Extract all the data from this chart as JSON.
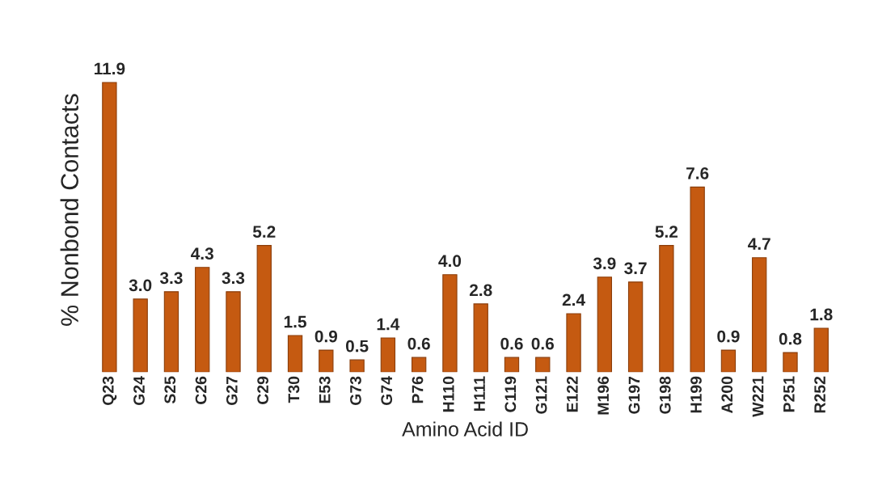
{
  "chart_data": {
    "type": "bar",
    "xlabel": "Amino Acid ID",
    "ylabel": "% Nonbond Contacts",
    "categories": [
      "Q23",
      "G24",
      "S25",
      "C26",
      "G27",
      "C29",
      "T30",
      "E53",
      "G73",
      "G74",
      "P76",
      "H110",
      "H111",
      "C119",
      "G121",
      "E122",
      "M196",
      "G197",
      "G198",
      "H199",
      "A200",
      "W221",
      "P251",
      "R252"
    ],
    "values": [
      11.9,
      3.0,
      3.3,
      4.3,
      3.3,
      5.2,
      1.5,
      0.9,
      0.5,
      1.4,
      0.6,
      4.0,
      2.8,
      0.6,
      0.6,
      2.4,
      3.9,
      3.7,
      5.2,
      7.6,
      0.9,
      4.7,
      0.8,
      1.8
    ],
    "value_labels": [
      "11.9",
      "3.0",
      "3.3",
      "4.3",
      "3.3",
      "5.2",
      "1.5",
      "0.9",
      "0.5",
      "1.4",
      "0.6",
      "4.0",
      "2.8",
      "0.6",
      "0.6",
      "2.4",
      "3.9",
      "3.7",
      "5.2",
      "7.6",
      "0.9",
      "4.7",
      "0.8",
      "1.8"
    ],
    "color": "#c55a11",
    "grid": false,
    "legend": false
  }
}
